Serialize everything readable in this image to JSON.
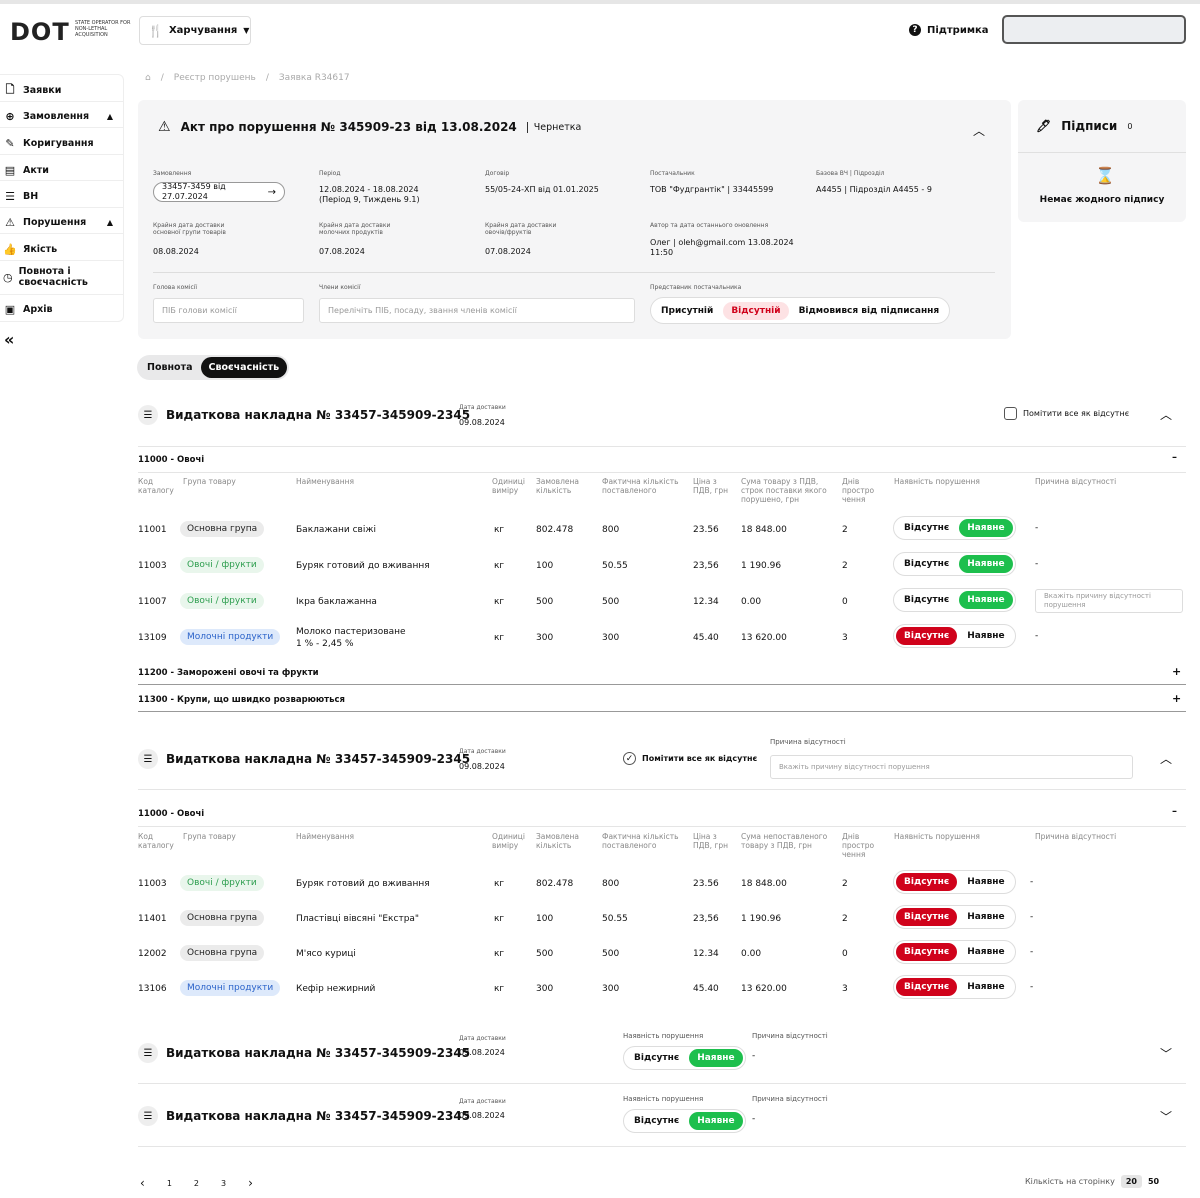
{
  "header": {
    "logo": "DOT",
    "logo_sub": "STATE OPERATOR FOR NON-LETHAL ACQUISITION",
    "category": "Харчування",
    "help": "Підтримка"
  },
  "sidebar": {
    "items": [
      "Заявки",
      "Замовлення",
      "Коригування",
      "Акти",
      "ВН",
      "Порушення",
      "Якість",
      "Повнота і своєчасність",
      "Архів"
    ],
    "collapse": "«"
  },
  "breadcrumb": {
    "home": "⌂",
    "sep": "/",
    "item1": "Реєстр порушень",
    "item2": "Заявка R34617"
  },
  "act": {
    "title": "Акт про порушення № 345909-23 від 13.08.2024",
    "status": "Чернетка",
    "f1l": "Замовлення",
    "f1v": "33457-3459 від 27.07.2024",
    "f2l": "Період",
    "f2v": "12.08.2024 - 18.08.2024",
    "f2v2": "(Період 9, Тиждень 9.1)",
    "f3l": "Договір",
    "f3v": "55/05-24-ХП від 01.01.2025",
    "f4l": "Постачальник",
    "f4v": "ТОВ \"Фудгрантік\" | 33445599",
    "f5l": "Базова ВЧ | Підрозділ",
    "f5v": "А4455 | Підрозділ А4455 - 9",
    "f6l": "Крайня дата доставки основної групи товарів",
    "f6v": "08.08.2024",
    "f7l": "Крайня дата доставки молочних продуктів",
    "f7v": "07.08.2024",
    "f8l": "Крайня дата доставки овочів/фруктів",
    "f8v": "07.08.2024",
    "f9l": "Автор та дата останнього оновлення",
    "f9v": "Олег | oleh@gmail.com 13.08.2024",
    "f9v2": "11:50",
    "head_l": "Голова комісії",
    "head_ph": "ПІБ голови комісії",
    "members_l": "Члени комісії",
    "members_ph": "Перелічіть ПІБ, посаду, звання членів комісії",
    "rep_l": "Представник постачальника",
    "rep_opts": [
      "Присутній",
      "Відсутній",
      "Відмовився від підписання"
    ]
  },
  "signatures": {
    "title": "Підписи",
    "count": "0",
    "empty": "Немає жодного підпису"
  },
  "toggle": {
    "a": "Повнота",
    "b": "Своєчасність"
  },
  "common": {
    "inv_title": "Видаткова накладна № 33457-345909-2345",
    "date_l": "Дата доставки",
    "date": "09.08.2024",
    "mark_all": "Помітити все як відсутнє",
    "absent": "Відсутнє",
    "present": "Наявне",
    "reason_l": "Причина відсутності",
    "violation_l": "Наявність порушення",
    "reason_ph": "Вкажіть причину відсутності порушення",
    "reason_ph2": "Вкажіть причину відсутності порушення",
    "dash": "-",
    "minus": "–",
    "plus": "+"
  },
  "cols1": [
    "Код каталогу",
    "Група товару",
    "Найменування",
    "Одиниці виміру",
    "Замовлена кількість",
    "Фактична кількість поставленого",
    "Ціна з ПДВ, грн",
    "Сума товару з ПДВ, строк поставки якого порушено, грн",
    "Днів простро чення",
    "Наявність порушення",
    "Причина відсутності"
  ],
  "cols2": [
    "Код каталогу",
    "Група товару",
    "Найменування",
    "Одиниці виміру",
    "Замовлена кількість",
    "Фактична кількість поставленого",
    "Ціна з ПДВ, грн",
    "Сума непоставленого товару з ПДВ, грн",
    "Днів простро чення",
    "Наявність порушення",
    "Причина відсутності"
  ],
  "inv1": {
    "cat1": "11000 - Овочі",
    "cat2": "11200 - Заморожені овочі та фрукти",
    "cat3": "11300 - Крупи, що швидко розварюються",
    "rows": [
      {
        "code": "11001",
        "group": "Основна група",
        "gtype": "grey",
        "name": "Баклажани свіжі",
        "name2": "",
        "unit": "кг",
        "ord": "802.478",
        "fact": "800",
        "price": "23.56",
        "sum": "18 848.00",
        "days": "2",
        "state": "present",
        "reason": "-"
      },
      {
        "code": "11003",
        "group": "Овочі / фрукти",
        "gtype": "green",
        "name": "Буряк готовий до вживання",
        "name2": "",
        "unit": "кг",
        "ord": "100",
        "fact": "50.55",
        "price": "23,56",
        "sum": "1 190.96",
        "days": "2",
        "state": "present",
        "reason": "-"
      },
      {
        "code": "11007",
        "group": "Овочі / фрукти",
        "gtype": "green",
        "name": "Ікра баклажанна",
        "name2": "",
        "unit": "кг",
        "ord": "500",
        "fact": "500",
        "price": "12.34",
        "sum": "0.00",
        "days": "0",
        "state": "present",
        "reason": ""
      },
      {
        "code": "13109",
        "group": "Молочні продукти",
        "gtype": "blue",
        "name": "Молоко пастеризоване",
        "name2": "1 % - 2,45 %",
        "unit": "кг",
        "ord": "300",
        "fact": "300",
        "price": "45.40",
        "sum": "13 620.00",
        "days": "3",
        "state": "absent",
        "reason": "-"
      }
    ]
  },
  "inv2": {
    "cat1": "11000 - Овочі",
    "rows": [
      {
        "code": "11003",
        "group": "Овочі / фрукти",
        "gtype": "green",
        "name": "Буряк готовий до вживання",
        "unit": "кг",
        "ord": "802.478",
        "fact": "800",
        "price": "23.56",
        "sum": "18 848.00",
        "days": "2",
        "reason": "-"
      },
      {
        "code": "11401",
        "group": "Основна група",
        "gtype": "grey",
        "name": "Пластівці вівсяні \"Екстра\"",
        "unit": "кг",
        "ord": "100",
        "fact": "50.55",
        "price": "23,56",
        "sum": "1 190.96",
        "days": "2",
        "reason": "-"
      },
      {
        "code": "12002",
        "group": "Основна група",
        "gtype": "grey",
        "name": "М'ясо куриці",
        "unit": "кг",
        "ord": "500",
        "fact": "500",
        "price": "12.34",
        "sum": "0.00",
        "days": "0",
        "reason": "-"
      },
      {
        "code": "13106",
        "group": "Молочні продукти",
        "gtype": "blue",
        "name": "Кефір нежирний",
        "unit": "кг",
        "ord": "300",
        "fact": "300",
        "price": "45.40",
        "sum": "13 620.00",
        "days": "3",
        "reason": "-"
      }
    ]
  },
  "pager": {
    "prev": "‹",
    "p1": "1",
    "p2": "2",
    "p3": "3",
    "next": "›",
    "per_page": "Кількість на сторінку",
    "opt1": "20",
    "opt2": "50"
  }
}
